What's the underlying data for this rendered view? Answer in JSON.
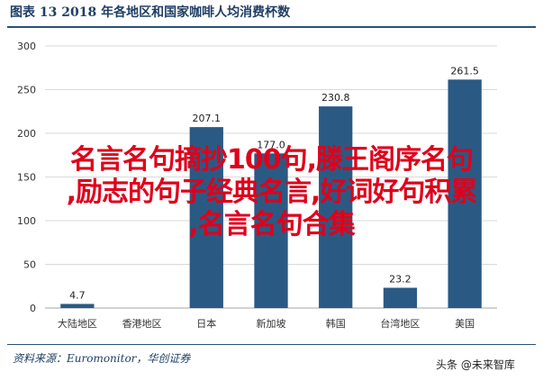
{
  "header": {
    "title": "图表 13 2018 年各地区和国家咖啡人均消费杯数"
  },
  "chart_data": {
    "type": "bar",
    "categories": [
      "大陆地区",
      "香港地区",
      "日本",
      "新加坡",
      "韩国",
      "台湾地区",
      "美国"
    ],
    "values": [
      4.7,
      null,
      207.1,
      177.0,
      230.8,
      23.2,
      261.5
    ],
    "data_labels": [
      "4.7",
      "",
      "207.1",
      "177.0",
      "230.8",
      "23.2",
      "261.5"
    ],
    "yticks": [
      "0",
      "50",
      "100",
      "150",
      "200",
      "250",
      "300"
    ],
    "ylim": [
      0,
      300
    ],
    "bar_color": "#2a5a84",
    "grid": true,
    "title": "",
    "xlabel": "",
    "ylabel": ""
  },
  "overlay": {
    "lines": [
      "名言名句摘抄100句,滕王阁序名句",
      ",励志的句子经典名言,好词好句积累",
      ",名言名句合集"
    ],
    "color": "#e0001b"
  },
  "footer": {
    "source": "资料来源：Euromonitor，华创证券",
    "watermark": "头条 @未来智库"
  }
}
